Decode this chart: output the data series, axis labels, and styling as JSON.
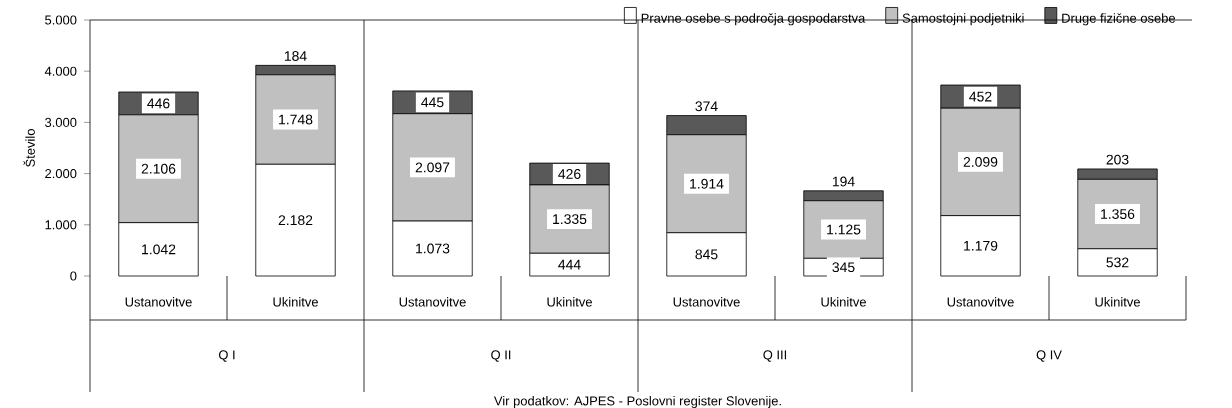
{
  "chart_data": {
    "type": "bar",
    "stacked": true,
    "ylabel": "Število",
    "categories": [
      "Ustanovitve",
      "Ukinitve",
      "Ustanovitve",
      "Ukinitve",
      "Ustanovitve",
      "Ukinitve",
      "Ustanovitve",
      "Ukinitve"
    ],
    "series": [
      {
        "name": "Pravne osebe s področja gospodarstva",
        "color": "#ffffff",
        "values": [
          1042,
          2182,
          1073,
          444,
          845,
          345,
          1179,
          532
        ],
        "value_labels": [
          "1.042",
          "2.182",
          "1.073",
          "444",
          "845",
          "345",
          "1.179",
          "532"
        ]
      },
      {
        "name": "Samostojni podjetniki",
        "color": "#c0c0c0",
        "values": [
          2106,
          1748,
          2097,
          1335,
          1914,
          1125,
          2099,
          1356
        ],
        "value_labels": [
          "2.106",
          "1.748",
          "2.097",
          "1.335",
          "1.914",
          "1.125",
          "2.099",
          "1.356"
        ]
      },
      {
        "name": "Druge fizične osebe",
        "color": "#595959",
        "values": [
          446,
          184,
          445,
          426,
          374,
          194,
          452,
          203
        ],
        "value_labels": [
          "446",
          "184",
          "445",
          "426",
          "374",
          "194",
          "452",
          "203"
        ]
      }
    ],
    "ylim": [
      0,
      5000
    ],
    "yticks": [
      {
        "value": 0,
        "label": "0"
      },
      {
        "value": 1000,
        "label": "1.000"
      },
      {
        "value": 2000,
        "label": "2.000"
      },
      {
        "value": 3000,
        "label": "3.000"
      },
      {
        "value": 4000,
        "label": "4.000"
      },
      {
        "value": 5000,
        "label": "5.000"
      }
    ],
    "legend": "top right",
    "annotations": [
      "Q I",
      "Q II",
      "Q III",
      "Q IV",
      "Vir podatkov: AJPES - Poslovni register Slovenije."
    ]
  }
}
